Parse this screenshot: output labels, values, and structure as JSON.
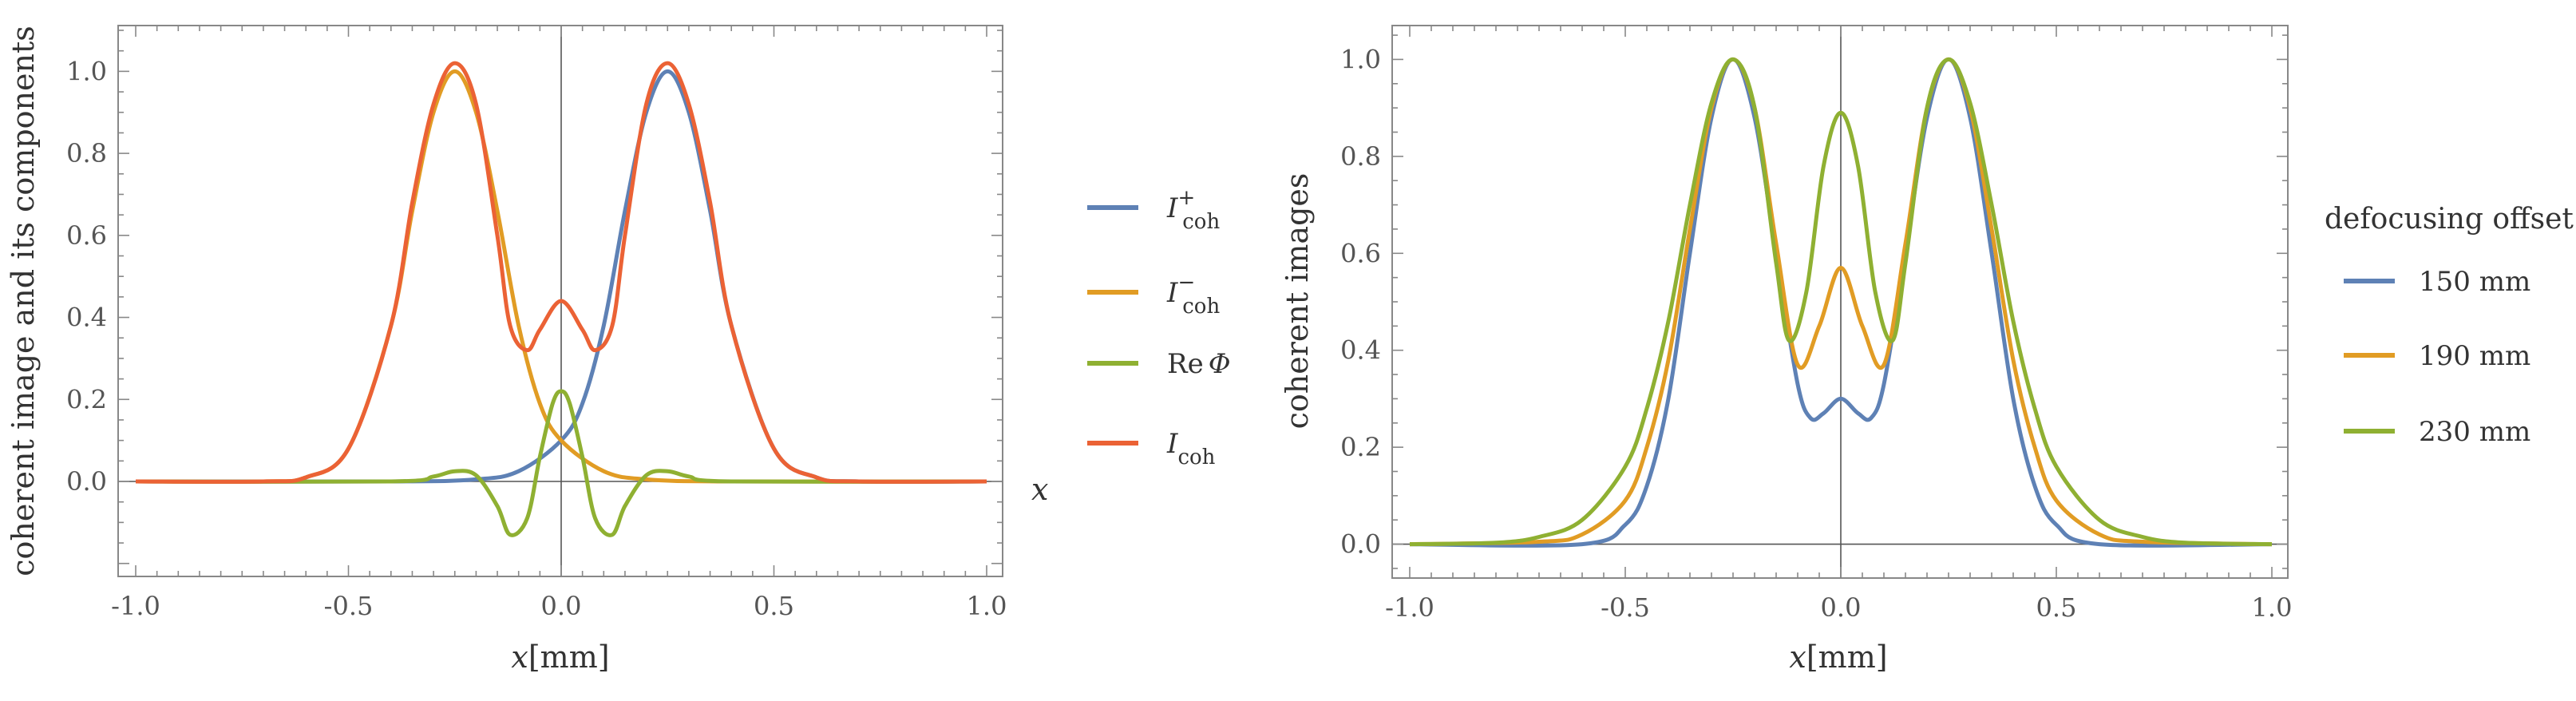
{
  "colors": {
    "blue": "#5e81b5",
    "orange": "#e19c24",
    "green": "#8fb032",
    "red": "#eb6235",
    "frame": "#888888",
    "axis": "#555555"
  },
  "chart_data": [
    {
      "type": "line",
      "ylabel": "coherent image and its components",
      "xlabel": {
        "var": "x",
        "unit": "[mm]"
      },
      "x_axis_marker": "x",
      "xlim": [
        -1.0,
        1.0
      ],
      "ylim": [
        -0.22,
        1.1
      ],
      "xticks": [
        -1.0,
        -0.5,
        0.0,
        0.5,
        1.0
      ],
      "xtick_labels": [
        "-1.0",
        "-0.5",
        "0.0",
        "0.5",
        "1.0"
      ],
      "yticks": [
        0.0,
        0.2,
        0.4,
        0.6,
        0.8,
        1.0
      ],
      "ytick_labels": [
        "0.0",
        "0.2",
        "0.4",
        "0.6",
        "0.8",
        "1.0"
      ],
      "legend": [
        {
          "base": "I",
          "sup": "+",
          "sub": "coh",
          "color": "#5e81b5"
        },
        {
          "base": "I",
          "sup": "−",
          "sub": "coh",
          "color": "#e19c24"
        },
        {
          "base": "Re",
          "sym": "Φ",
          "color": "#8fb032"
        },
        {
          "base": "I",
          "sub": "coh",
          "color": "#eb6235"
        }
      ],
      "series": [
        {
          "name": "I+coh",
          "color": "#5e81b5",
          "x": [
            -1.0,
            -0.4,
            -0.2,
            -0.1,
            0.0,
            0.05,
            0.1,
            0.15,
            0.2,
            0.25,
            0.3,
            0.35,
            0.4,
            0.5,
            0.6,
            0.7,
            1.0
          ],
          "values": [
            0.0,
            0.0,
            0.005,
            0.025,
            0.1,
            0.19,
            0.38,
            0.66,
            0.9,
            1.0,
            0.9,
            0.66,
            0.38,
            0.08,
            0.01,
            0.0,
            0.0
          ]
        },
        {
          "name": "I-coh",
          "color": "#e19c24",
          "x": [
            -1.0,
            -0.7,
            -0.6,
            -0.5,
            -0.4,
            -0.35,
            -0.3,
            -0.25,
            -0.2,
            -0.15,
            -0.1,
            -0.05,
            0.0,
            0.1,
            0.2,
            0.4,
            1.0
          ],
          "values": [
            0.0,
            0.0,
            0.01,
            0.08,
            0.38,
            0.66,
            0.9,
            1.0,
            0.9,
            0.66,
            0.38,
            0.19,
            0.1,
            0.025,
            0.005,
            0.0,
            0.0
          ]
        },
        {
          "name": "Re Phi",
          "color": "#8fb032",
          "x": [
            -1.0,
            -0.4,
            -0.3,
            -0.25,
            -0.2,
            -0.15,
            -0.12,
            -0.08,
            -0.05,
            -0.02,
            0.0,
            0.02,
            0.05,
            0.08,
            0.12,
            0.15,
            0.2,
            0.25,
            0.3,
            0.4,
            1.0
          ],
          "values": [
            0.0,
            0.0,
            0.012,
            0.025,
            0.015,
            -0.06,
            -0.13,
            -0.09,
            0.06,
            0.19,
            0.22,
            0.19,
            0.06,
            -0.09,
            -0.13,
            -0.06,
            0.015,
            0.025,
            0.012,
            0.0,
            0.0
          ]
        },
        {
          "name": "Icoh",
          "color": "#eb6235",
          "x": [
            -1.0,
            -0.7,
            -0.6,
            -0.5,
            -0.4,
            -0.35,
            -0.3,
            -0.25,
            -0.2,
            -0.15,
            -0.12,
            -0.08,
            -0.05,
            0.0,
            0.05,
            0.08,
            0.12,
            0.15,
            0.2,
            0.25,
            0.3,
            0.35,
            0.4,
            0.5,
            0.6,
            0.7,
            1.0
          ],
          "values": [
            0.0,
            0.0,
            0.01,
            0.08,
            0.38,
            0.68,
            0.92,
            1.02,
            0.92,
            0.6,
            0.38,
            0.32,
            0.37,
            0.44,
            0.37,
            0.32,
            0.38,
            0.6,
            0.92,
            1.02,
            0.92,
            0.68,
            0.38,
            0.08,
            0.01,
            0.0,
            0.0
          ]
        }
      ]
    },
    {
      "type": "line",
      "ylabel": "coherent images",
      "xlabel": {
        "var": "x",
        "unit": "[mm]"
      },
      "xlim": [
        -1.0,
        1.0
      ],
      "ylim": [
        -0.06,
        1.06
      ],
      "xticks": [
        -1.0,
        -0.5,
        0.0,
        0.5,
        1.0
      ],
      "xtick_labels": [
        "-1.0",
        "-0.5",
        "0.0",
        "0.5",
        "1.0"
      ],
      "yticks": [
        0.0,
        0.2,
        0.4,
        0.6,
        0.8,
        1.0
      ],
      "ytick_labels": [
        "0.0",
        "0.2",
        "0.4",
        "0.6",
        "0.8",
        "1.0"
      ],
      "legend_title": "defocusing offset",
      "legend": [
        {
          "label": "150 mm",
          "color": "#5e81b5"
        },
        {
          "label": "190 mm",
          "color": "#e19c24"
        },
        {
          "label": "230 mm",
          "color": "#8fb032"
        }
      ],
      "series": [
        {
          "name": "150 mm",
          "color": "#5e81b5",
          "x": [
            -1.0,
            -0.6,
            -0.5,
            -0.45,
            -0.4,
            -0.35,
            -0.3,
            -0.25,
            -0.2,
            -0.15,
            -0.1,
            -0.07,
            -0.04,
            0.0,
            0.04,
            0.07,
            0.1,
            0.15,
            0.2,
            0.25,
            0.3,
            0.35,
            0.4,
            0.45,
            0.5,
            0.6,
            1.0
          ],
          "values": [
            0.0,
            0.0,
            0.04,
            0.12,
            0.3,
            0.6,
            0.88,
            1.0,
            0.88,
            0.6,
            0.33,
            0.26,
            0.27,
            0.3,
            0.27,
            0.26,
            0.33,
            0.6,
            0.88,
            1.0,
            0.88,
            0.6,
            0.3,
            0.12,
            0.04,
            0.0,
            0.0
          ]
        },
        {
          "name": "190 mm",
          "color": "#e19c24",
          "x": [
            -1.0,
            -0.7,
            -0.6,
            -0.5,
            -0.45,
            -0.4,
            -0.35,
            -0.3,
            -0.25,
            -0.2,
            -0.15,
            -0.1,
            -0.05,
            0.0,
            0.05,
            0.1,
            0.15,
            0.2,
            0.25,
            0.3,
            0.35,
            0.4,
            0.45,
            0.5,
            0.6,
            0.7,
            1.0
          ],
          "values": [
            0.0,
            0.005,
            0.02,
            0.09,
            0.2,
            0.38,
            0.65,
            0.9,
            1.0,
            0.9,
            0.62,
            0.37,
            0.45,
            0.57,
            0.45,
            0.37,
            0.62,
            0.9,
            1.0,
            0.9,
            0.65,
            0.38,
            0.2,
            0.09,
            0.02,
            0.005,
            0.0
          ]
        },
        {
          "name": "230 mm",
          "color": "#8fb032",
          "x": [
            -1.0,
            -0.8,
            -0.7,
            -0.6,
            -0.5,
            -0.45,
            -0.4,
            -0.35,
            -0.3,
            -0.25,
            -0.2,
            -0.15,
            -0.12,
            -0.08,
            -0.04,
            0.0,
            0.04,
            0.08,
            0.12,
            0.15,
            0.2,
            0.25,
            0.3,
            0.35,
            0.4,
            0.45,
            0.5,
            0.6,
            0.7,
            0.8,
            1.0
          ],
          "values": [
            0.0,
            0.003,
            0.015,
            0.05,
            0.16,
            0.28,
            0.46,
            0.7,
            0.91,
            1.0,
            0.9,
            0.58,
            0.42,
            0.52,
            0.78,
            0.89,
            0.78,
            0.52,
            0.42,
            0.58,
            0.9,
            1.0,
            0.91,
            0.7,
            0.46,
            0.28,
            0.16,
            0.05,
            0.015,
            0.003,
            0.0
          ]
        }
      ]
    }
  ]
}
